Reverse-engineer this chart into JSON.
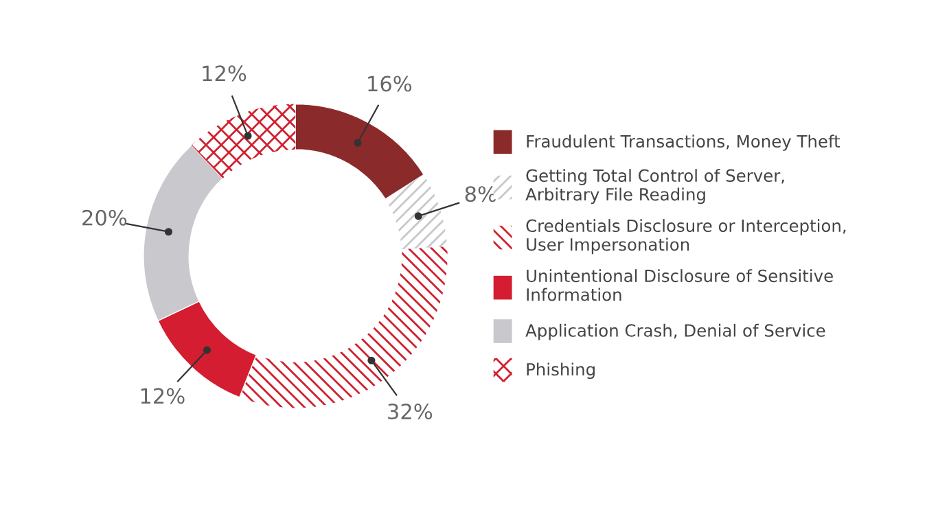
{
  "chart_data": {
    "type": "donut",
    "categories": [
      "Fraudulent Transactions, Money Theft",
      "Getting Total Control of Server,\nArbitrary File Reading",
      "Credentials Disclosure or Interception,\nUser Impersonation",
      "Unintentional Disclosure of Sensitive\nInformation",
      "Application Crash, Denial of Service",
      "Phishing"
    ],
    "values": [
      16,
      8,
      32,
      12,
      20,
      12
    ],
    "colors": [
      "#8b2a2a",
      "#c8c8cc",
      "#d0202e",
      "#d41d30",
      "#c9c8cd",
      "#d0202e"
    ],
    "value_labels": [
      "16%",
      "8%",
      "32%",
      "12%",
      "20%",
      "12%"
    ],
    "legend": "right"
  }
}
